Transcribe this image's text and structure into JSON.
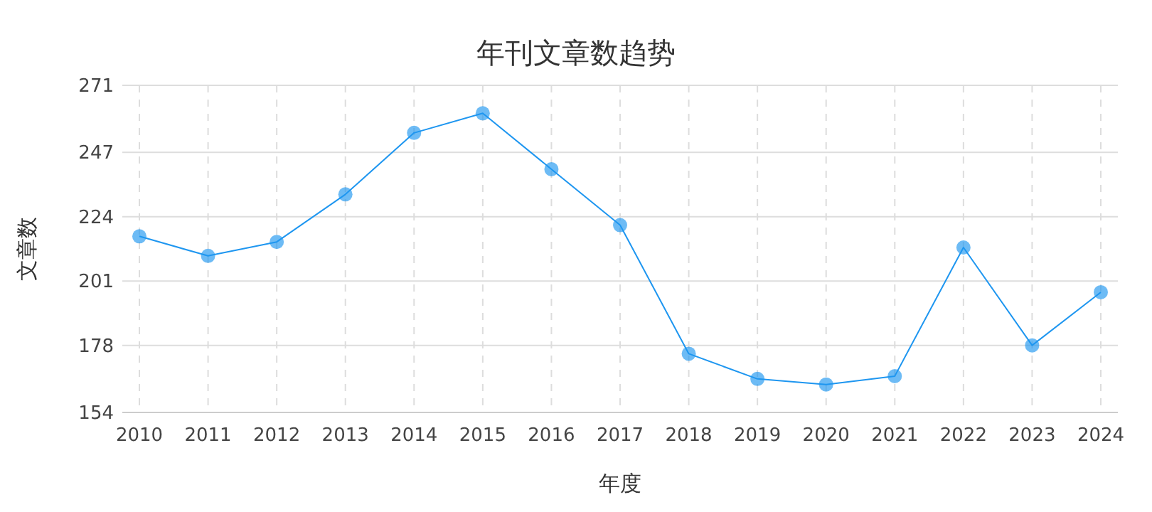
{
  "chart_data": {
    "type": "line",
    "title": "年刊文章数趋势",
    "xlabel": "年度",
    "ylabel": "文章数",
    "categories": [
      "2010",
      "2011",
      "2012",
      "2013",
      "2014",
      "2015",
      "2016",
      "2017",
      "2018",
      "2019",
      "2020",
      "2021",
      "2022",
      "2023",
      "2024"
    ],
    "series": [
      {
        "color": "#1e96f0",
        "values": [
          217,
          210,
          215,
          232,
          254,
          261,
          241,
          221,
          175,
          166,
          164,
          167,
          213,
          178,
          197
        ]
      }
    ],
    "ylim": [
      154,
      271
    ],
    "yticks": [
      154,
      178,
      201,
      224,
      247,
      271
    ],
    "grid": true,
    "marker": "circle"
  }
}
